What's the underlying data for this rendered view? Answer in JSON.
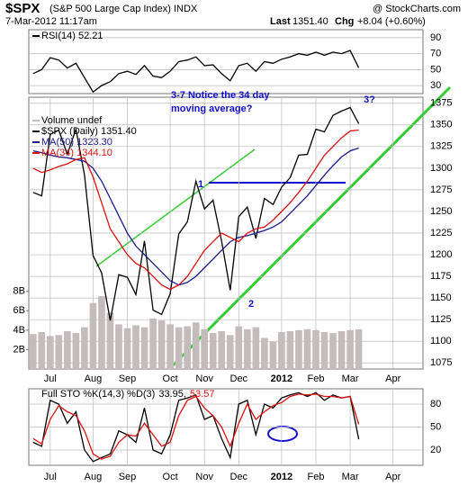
{
  "header": {
    "symbol": "$SPX",
    "name": "(S&P 500 Large Cap Index) INDX",
    "date": "7-Mar-2012 11:17am",
    "source": "@ StockCharts.com",
    "last_label": "Last",
    "last": "1351.40",
    "chg_label": "Chg",
    "chg": "+8.04 (+0.60%)"
  },
  "chart_data": [
    {
      "type": "line",
      "ylim": [
        20,
        100
      ],
      "yticks": [
        30,
        50,
        70,
        90
      ],
      "grid": true,
      "series": [
        {
          "name": "RSI(14) 52.21",
          "color": "#000000",
          "values": [
            45,
            50,
            65,
            62,
            52,
            58,
            40,
            22,
            30,
            35,
            45,
            48,
            44,
            55,
            42,
            40,
            48,
            60,
            62,
            66,
            55,
            56,
            45,
            36,
            55,
            58,
            48,
            60,
            58,
            63,
            66,
            70,
            68,
            72,
            68,
            72,
            70,
            74,
            52.21,
            null,
            null,
            null,
            null,
            null,
            null,
            null
          ]
        }
      ]
    },
    {
      "type": "line",
      "ylim": [
        1068,
        1382
      ],
      "yticks": [
        1075,
        1100,
        1125,
        1150,
        1175,
        1200,
        1225,
        1250,
        1275,
        1300,
        1325,
        1350,
        1375
      ],
      "y2lim": [
        0,
        28
      ],
      "y2ticks": [
        {
          "value": 2,
          "label": "2B"
        },
        {
          "value": 4,
          "label": "4B"
        },
        {
          "value": 6,
          "label": "6B"
        },
        {
          "value": 8,
          "label": "8B"
        }
      ],
      "grid": true,
      "categories": [
        null,
        null,
        "Jul",
        null,
        null,
        null,
        null,
        "Aug",
        null,
        null,
        null,
        "Sep",
        null,
        null,
        null,
        null,
        "Oct",
        null,
        null,
        null,
        "Nov",
        null,
        null,
        null,
        "Dec",
        null,
        null,
        null,
        null,
        "2012",
        null,
        null,
        null,
        "Feb",
        null,
        null,
        null,
        "Mar",
        null,
        null,
        null,
        null,
        "Apr",
        null,
        null,
        null
      ],
      "series": [
        {
          "name": "Volume undef",
          "color": "#c4bcbc",
          "axis": "y2",
          "values": [
            3.6,
            3.8,
            3.4,
            3.5,
            3.9,
            3.7,
            4.3,
            6.8,
            7.5,
            5.8,
            4.6,
            4.2,
            4.5,
            4.3,
            5.2,
            5.0,
            4.6,
            4.3,
            4.4,
            4.8,
            4.1,
            3.7,
            3.9,
            3.5,
            4.4,
            4.1,
            4.3,
            3.2,
            2.8,
            3.8,
            3.9,
            4.0,
            4.1,
            4.0,
            3.8,
            3.7,
            3.9,
            4.0,
            4.1,
            null,
            null,
            null,
            null,
            null,
            null,
            null
          ]
        },
        {
          "name": "$SPX (Daily) 1351.40",
          "color": "#000000",
          "values": [
            1272,
            1268,
            1339,
            1344,
            1316,
            1345,
            1292,
            1199,
            1179,
            1124,
            1177,
            1174,
            1154,
            1216,
            1136,
            1131,
            1155,
            1224,
            1238,
            1285,
            1253,
            1263,
            1216,
            1159,
            1244,
            1255,
            1219,
            1265,
            1258,
            1278,
            1289,
            1315,
            1316,
            1345,
            1342,
            1361,
            1366,
            1370,
            1351.4,
            null,
            null,
            null,
            null,
            null,
            null,
            null
          ]
        },
        {
          "name": "MA(50) 1323.30",
          "color": "#1a1a8c",
          "values": [
            1320,
            1318,
            1315,
            1313,
            1312,
            1310,
            1308,
            1300,
            1285,
            1265,
            1245,
            1225,
            1210,
            1200,
            1190,
            1180,
            1170,
            1165,
            1168,
            1175,
            1185,
            1195,
            1205,
            1215,
            1220,
            1222,
            1225,
            1228,
            1232,
            1238,
            1248,
            1258,
            1268,
            1280,
            1292,
            1303,
            1313,
            1320,
            1323.3,
            null,
            null,
            null,
            null,
            null,
            null,
            null
          ]
        },
        {
          "name": "MA(34) 1344.10",
          "color": "#dd1111",
          "values": [
            1300,
            1295,
            1298,
            1302,
            1305,
            1310,
            1312,
            1290,
            1260,
            1230,
            1215,
            1200,
            1190,
            1185,
            1175,
            1165,
            1160,
            1165,
            1175,
            1190,
            1205,
            1215,
            1225,
            1220,
            1215,
            1225,
            1230,
            1232,
            1240,
            1250,
            1260,
            1272,
            1285,
            1300,
            1315,
            1325,
            1335,
            1343,
            1344.1,
            null,
            null,
            null,
            null,
            null,
            null,
            null
          ]
        }
      ],
      "annotations": [
        "3-7 Notice the 34 day",
        "moving average?",
        "3?",
        "1",
        "2"
      ]
    },
    {
      "type": "line",
      "title": "Full STO %K(14,3) %D(3)",
      "ylim": [
        0,
        100
      ],
      "yticks": [
        20,
        50,
        80
      ],
      "grid": true,
      "categories": [
        null,
        null,
        "Jul",
        null,
        null,
        null,
        null,
        "Aug",
        null,
        null,
        null,
        "Sep",
        null,
        null,
        null,
        null,
        "Oct",
        null,
        null,
        null,
        "Nov",
        null,
        null,
        null,
        "Dec",
        null,
        null,
        null,
        null,
        "2012",
        null,
        null,
        null,
        "Feb",
        null,
        null,
        null,
        "Mar",
        null,
        null,
        null,
        null,
        "Apr",
        null,
        null,
        null
      ],
      "series": [
        {
          "name": "33.95,",
          "color": "#000000",
          "values": [
            30,
            25,
            85,
            80,
            55,
            70,
            20,
            5,
            10,
            15,
            45,
            40,
            30,
            75,
            20,
            15,
            40,
            85,
            88,
            92,
            60,
            65,
            35,
            10,
            80,
            85,
            40,
            80,
            75,
            88,
            92,
            95,
            90,
            95,
            85,
            92,
            88,
            90,
            33.95,
            null,
            null,
            null,
            null,
            null,
            null,
            null
          ]
        },
        {
          "name": "53.57",
          "color": "#dd1111",
          "values": [
            35,
            28,
            60,
            78,
            70,
            65,
            45,
            15,
            8,
            12,
            30,
            40,
            38,
            55,
            40,
            25,
            30,
            65,
            85,
            90,
            75,
            65,
            50,
            25,
            55,
            80,
            60,
            70,
            78,
            82,
            90,
            93,
            92,
            93,
            90,
            90,
            88,
            90,
            53.57,
            null,
            null,
            null,
            null,
            null,
            null,
            null
          ]
        }
      ]
    }
  ]
}
